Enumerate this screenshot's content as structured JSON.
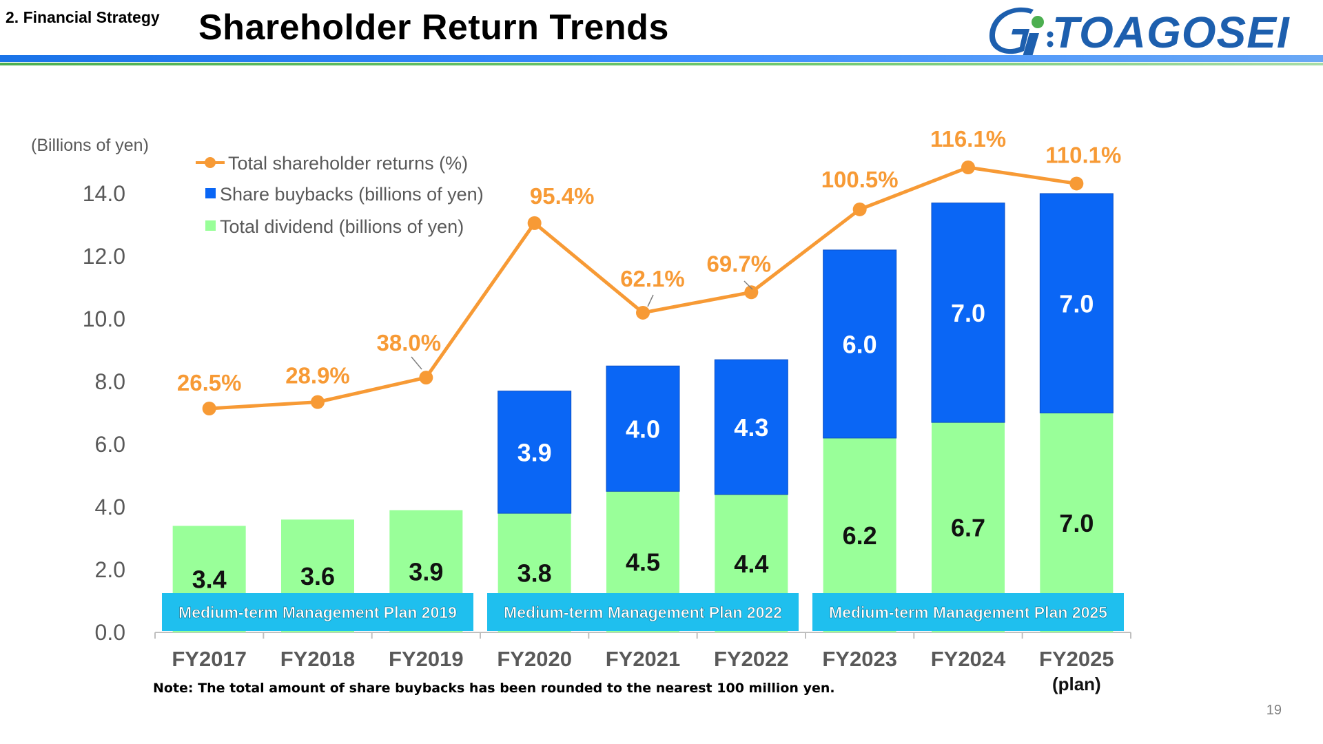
{
  "header": {
    "section": "2. Financial Strategy",
    "title": "Shareholder Return Trends",
    "logo_text": "TOAGOSEI"
  },
  "footer": {
    "note": "Note: The total amount of share buybacks has been rounded to the nearest 100 million yen.",
    "page_number": "19"
  },
  "colors": {
    "dividend": "#99ff99",
    "buyback": "#0a66f5",
    "returns_line": "#f79a35",
    "plan_band": "#1fbfee",
    "axis_text": "#595959"
  },
  "chart_data": {
    "type": "bar",
    "stacked": true,
    "unit_label": "(Billions of yen)",
    "categories": [
      "FY2017",
      "FY2018",
      "FY2019",
      "FY2020",
      "FY2021",
      "FY2022",
      "FY2023",
      "FY2024",
      "FY2025"
    ],
    "category_sublabels": [
      "",
      "",
      "",
      "",
      "",
      "",
      "",
      "",
      "(plan)"
    ],
    "ylim": [
      0,
      14
    ],
    "yticks": [
      "0.0",
      "2.0",
      "4.0",
      "6.0",
      "8.0",
      "10.0",
      "12.0",
      "14.0"
    ],
    "series": [
      {
        "name": "Total dividend (billions of yen)",
        "kind": "bar",
        "values": [
          3.4,
          3.6,
          3.9,
          3.8,
          4.5,
          4.4,
          6.2,
          6.7,
          7.0
        ],
        "labels": [
          "3.4",
          "3.6",
          "3.9",
          "3.8",
          "4.5",
          "4.4",
          "6.2",
          "6.7",
          "7.0"
        ]
      },
      {
        "name": "Share buybacks (billions of yen)",
        "kind": "bar",
        "values": [
          0,
          0,
          0,
          3.9,
          4.0,
          4.3,
          6.0,
          7.0,
          7.0
        ],
        "labels": [
          "",
          "",
          "",
          "3.9",
          "4.0",
          "4.3",
          "6.0",
          "7.0",
          "7.0"
        ]
      },
      {
        "name": "Total shareholder returns (%)",
        "kind": "line",
        "values": [
          26.5,
          28.9,
          38.0,
          95.4,
          62.1,
          69.7,
          100.5,
          116.1,
          110.1
        ],
        "labels": [
          "26.5%",
          "28.9%",
          "38.0%",
          "95.4%",
          "62.1%",
          "69.7%",
          "100.5%",
          "116.1%",
          "110.1%"
        ]
      }
    ],
    "legend_order": [
      "Total shareholder returns (%)",
      "Share buybacks (billions of yen)",
      "Total dividend (billions of yen)"
    ],
    "legend_position": "top-left",
    "plan_bands": [
      {
        "label": "Medium-term Management Plan 2019",
        "from": 0,
        "to": 2
      },
      {
        "label": "Medium-term Management Plan 2022",
        "from": 3,
        "to": 5
      },
      {
        "label": "Medium-term Management Plan 2025",
        "from": 6,
        "to": 8
      }
    ]
  }
}
